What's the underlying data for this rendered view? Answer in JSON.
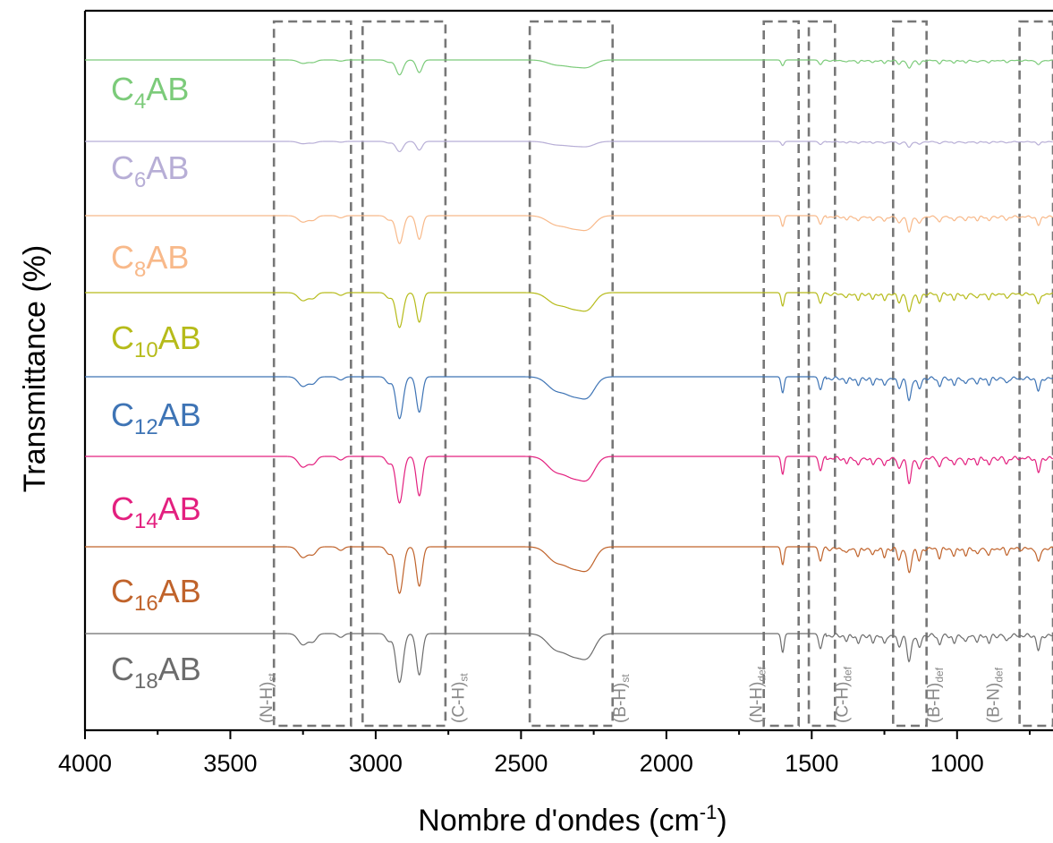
{
  "chart_data": {
    "type": "line",
    "title": "",
    "ylabel": "Transmittance (%)",
    "xlabel_main": "Nombre d'ondes (cm",
    "xlabel_sup": "-1",
    "xlabel_close": ")",
    "xlim": [
      4000,
      670
    ],
    "x_reversed": true,
    "x_ticks": [
      4000,
      3500,
      3000,
      2500,
      2000,
      1500,
      1000
    ],
    "x_tick_labels": [
      "4000",
      "3500",
      "3000",
      "2500",
      "2000",
      "1500",
      "1000"
    ],
    "y_ticks_shown": false,
    "grid": false,
    "legend": "labels placed at left next to each offset trace",
    "series": [
      {
        "prefix": "C",
        "sub": "4",
        "suffix": "AB",
        "color": "#7ccb7a",
        "intensity": 0.32
      },
      {
        "prefix": "C",
        "sub": "6",
        "suffix": "AB",
        "color": "#b7aed6",
        "intensity": 0.22
      },
      {
        "prefix": "C",
        "sub": "8",
        "suffix": "AB",
        "color": "#f8b98a",
        "intensity": 0.6
      },
      {
        "prefix": "C",
        "sub": "10",
        "suffix": "AB",
        "color": "#b6bb1a",
        "intensity": 0.75
      },
      {
        "prefix": "C",
        "sub": "12",
        "suffix": "AB",
        "color": "#3e74b5",
        "intensity": 0.9
      },
      {
        "prefix": "C",
        "sub": "14",
        "suffix": "AB",
        "color": "#e3207f",
        "intensity": 1.0
      },
      {
        "prefix": "C",
        "sub": "16",
        "suffix": "AB",
        "color": "#c0632b",
        "intensity": 1.0
      },
      {
        "prefix": "C",
        "sub": "18",
        "suffix": "AB",
        "color": "#6c6c6c",
        "intensity": 1.05
      }
    ],
    "peaks": [
      {
        "x": 3250,
        "depth": 12,
        "width": 16
      },
      {
        "x": 3215,
        "depth": 8,
        "width": 12
      },
      {
        "x": 3120,
        "depth": 4,
        "width": 10
      },
      {
        "x": 2955,
        "depth": 8,
        "width": 10
      },
      {
        "x": 2918,
        "depth": 52,
        "width": 12
      },
      {
        "x": 2850,
        "depth": 44,
        "width": 10
      },
      {
        "x": 2380,
        "depth": 16,
        "width": 30
      },
      {
        "x": 2320,
        "depth": 20,
        "width": 28
      },
      {
        "x": 2270,
        "depth": 22,
        "width": 25
      },
      {
        "x": 1600,
        "depth": 20,
        "width": 5
      },
      {
        "x": 1470,
        "depth": 16,
        "width": 6
      },
      {
        "x": 1380,
        "depth": 6,
        "width": 5
      },
      {
        "x": 1340,
        "depth": 9,
        "width": 5
      },
      {
        "x": 1290,
        "depth": 8,
        "width": 5
      },
      {
        "x": 1250,
        "depth": 10,
        "width": 5
      },
      {
        "x": 1200,
        "depth": 12,
        "width": 6
      },
      {
        "x": 1165,
        "depth": 28,
        "width": 7
      },
      {
        "x": 1130,
        "depth": 14,
        "width": 6
      },
      {
        "x": 1060,
        "depth": 10,
        "width": 5
      },
      {
        "x": 1010,
        "depth": 9,
        "width": 5
      },
      {
        "x": 970,
        "depth": 8,
        "width": 5
      },
      {
        "x": 930,
        "depth": 7,
        "width": 5
      },
      {
        "x": 890,
        "depth": 8,
        "width": 5
      },
      {
        "x": 830,
        "depth": 6,
        "width": 5
      },
      {
        "x": 720,
        "depth": 16,
        "width": 6
      }
    ],
    "regions": [
      {
        "x1": 3350,
        "x2": 3085,
        "label_main": "(N-H)",
        "label_sub": "st",
        "label_x": 3375
      },
      {
        "x1": 3045,
        "x2": 2760,
        "label_main": "(C-H)",
        "label_sub": "st",
        "label_x": 2715
      },
      {
        "x1": 2470,
        "x2": 2185,
        "label_main": "(B-H)",
        "label_sub": "st",
        "label_x": 2160
      },
      {
        "x1": 1665,
        "x2": 1545,
        "label_main": "(N-H)",
        "label_sub": "def",
        "label_x": 1690
      },
      {
        "x1": 1510,
        "x2": 1420,
        "label_main": "(C-H)",
        "label_sub": "def",
        "label_x": 1395
      },
      {
        "x1": 1220,
        "x2": 1105,
        "label_main": "(B-H)",
        "label_sub": "def",
        "label_x": 1080
      },
      {
        "x1": 785,
        "x2": 670,
        "label_main": "(B-N)",
        "label_sub": "def",
        "label_x": 875
      }
    ]
  }
}
